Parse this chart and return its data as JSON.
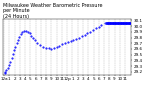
{
  "title": "Milwaukee Weather Barometric Pressure\nper Minute\n(24 Hours)",
  "title_fontsize": 3.5,
  "bg_color": "#ffffff",
  "plot_bg_color": "#ffffff",
  "dot_color": "#0000ff",
  "line_color": "#0000ff",
  "grid_color": "#b0b0b0",
  "tick_label_fontsize": 3.0,
  "x_ticks": [
    0,
    60,
    120,
    180,
    240,
    300,
    360,
    420,
    480,
    540,
    600,
    660,
    720,
    780,
    840,
    900,
    960,
    1020,
    1080,
    1140,
    1200,
    1260,
    1320,
    1380
  ],
  "x_tick_labels": [
    "12a",
    "1",
    "2",
    "3",
    "4",
    "5",
    "6",
    "7",
    "8",
    "9",
    "10",
    "11",
    "12p",
    "1",
    "2",
    "3",
    "4",
    "5",
    "6",
    "7",
    "8",
    "9",
    "10",
    "11"
  ],
  "ylim": [
    29.15,
    30.12
  ],
  "xlim": [
    -10,
    1450
  ],
  "y_ticks": [
    29.2,
    29.3,
    29.4,
    29.5,
    29.6,
    29.7,
    29.8,
    29.9,
    30.0,
    30.1
  ],
  "y_tick_labels": [
    "29.2",
    "29.3",
    "29.4",
    "29.5",
    "29.6",
    "29.7",
    "29.8",
    "29.9",
    "30.0",
    "30.1"
  ],
  "data_x": [
    5,
    15,
    25,
    40,
    55,
    70,
    85,
    100,
    115,
    130,
    145,
    160,
    175,
    190,
    210,
    230,
    250,
    270,
    290,
    310,
    330,
    355,
    380,
    415,
    445,
    480,
    510,
    540,
    570,
    600,
    630,
    660,
    700,
    730,
    760,
    790,
    820,
    855,
    885,
    920,
    950,
    980,
    1010,
    1050,
    1080,
    1110,
    1150,
    1180,
    1210,
    1240,
    1270,
    1300,
    1330,
    1360,
    1390,
    1420
  ],
  "data_y": [
    29.18,
    29.2,
    29.23,
    29.27,
    29.32,
    29.38,
    29.45,
    29.52,
    29.58,
    29.64,
    29.7,
    29.76,
    29.81,
    29.86,
    29.89,
    29.91,
    29.92,
    29.9,
    29.87,
    29.83,
    29.79,
    29.75,
    29.71,
    29.67,
    29.64,
    29.62,
    29.61,
    29.6,
    29.62,
    29.64,
    29.66,
    29.68,
    29.7,
    29.72,
    29.74,
    29.76,
    29.78,
    29.8,
    29.82,
    29.84,
    29.87,
    29.9,
    29.93,
    29.96,
    29.99,
    30.02,
    30.05,
    30.05,
    30.05,
    30.05,
    30.05,
    30.05,
    30.05,
    30.05,
    30.05,
    30.05
  ],
  "flat_line_x": [
    1175,
    1440
  ],
  "flat_line_y": [
    30.05,
    30.05
  ]
}
